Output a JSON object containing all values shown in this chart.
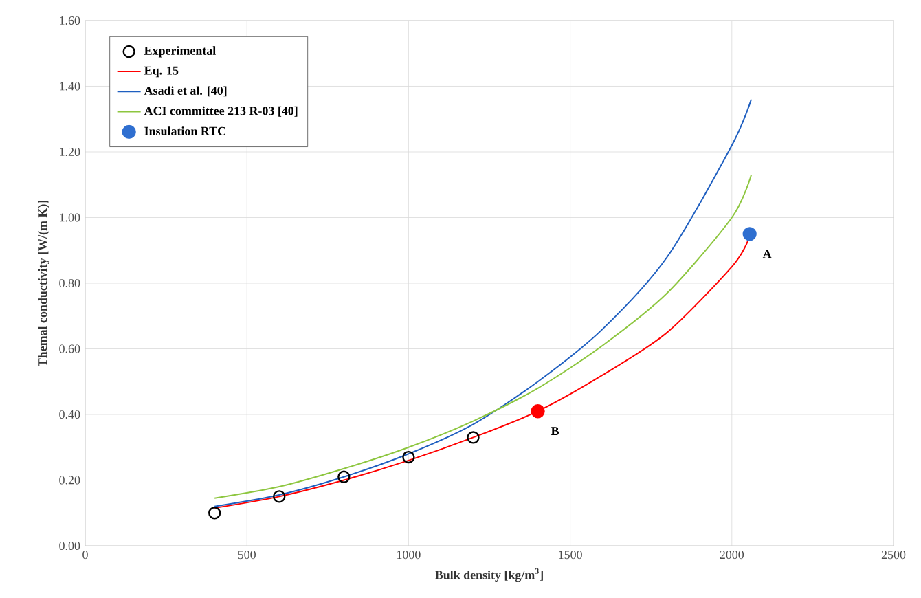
{
  "chart_data": {
    "type": "line",
    "xlabel": "Bulk density [kg/m$^{3}$]",
    "ylabel": "Themal conductivity [W/(m K)]",
    "xlim": [
      0,
      2500
    ],
    "xticks": [
      0,
      500,
      1000,
      1500,
      2000,
      2500
    ],
    "ylim": [
      0,
      1.6
    ],
    "yticks": [
      {
        "value": 0,
        "label": "0.00"
      },
      {
        "value": 0.2,
        "label": "0.20"
      },
      {
        "value": 0.4,
        "label": "0.40"
      },
      {
        "value": 0.6,
        "label": "0.60"
      },
      {
        "value": 0.8,
        "label": "0.80"
      },
      {
        "value": 1.0,
        "label": "1.00"
      },
      {
        "value": 1.2,
        "label": "1.20"
      },
      {
        "value": 1.4,
        "label": "1.40"
      },
      {
        "value": 1.6,
        "label": "1.60"
      }
    ],
    "grid": true,
    "legend": "top left",
    "series": [
      {
        "name": "Experimental",
        "type": "scatter",
        "marker": "circle",
        "color": "#000000",
        "x": [
          400,
          600,
          800,
          1000,
          1200
        ],
        "values": [
          0.1,
          0.15,
          0.21,
          0.27,
          0.33
        ]
      },
      {
        "name": "Eq. 15",
        "color": "#ff0000",
        "x": [
          400,
          600,
          800,
          1000,
          1200,
          1400,
          1600,
          1800,
          2000,
          2050
        ],
        "values": [
          0.115,
          0.15,
          0.2,
          0.26,
          0.33,
          0.41,
          0.52,
          0.65,
          0.85,
          0.93
        ]
      },
      {
        "name": "Asadi et al. [40]",
        "color": "#1f5fc0",
        "x": [
          400,
          600,
          800,
          1000,
          1200,
          1400,
          1600,
          1800,
          2000,
          2060
        ],
        "values": [
          0.12,
          0.155,
          0.21,
          0.28,
          0.37,
          0.5,
          0.66,
          0.88,
          1.22,
          1.36
        ]
      },
      {
        "name": "ACI committee 213 R-03 [40]",
        "color": "#8dc63f",
        "x": [
          400,
          600,
          800,
          1000,
          1200,
          1400,
          1600,
          1800,
          2000,
          2060
        ],
        "values": [
          0.145,
          0.18,
          0.235,
          0.3,
          0.38,
          0.48,
          0.61,
          0.77,
          1.0,
          1.13
        ]
      },
      {
        "name": "Insulation RTC",
        "type": "scatter",
        "color": "#2f6fd0",
        "x": [
          2055
        ],
        "values": [
          0.95
        ]
      },
      {
        "type": "scatter",
        "color": "#ff0000",
        "x": [
          1400
        ],
        "values": [
          0.41
        ]
      }
    ],
    "annotations": [
      {
        "text": "A",
        "x": 2055,
        "y": 0.95
      },
      {
        "text": "B",
        "x": 1400,
        "y": 0.41
      }
    ]
  }
}
